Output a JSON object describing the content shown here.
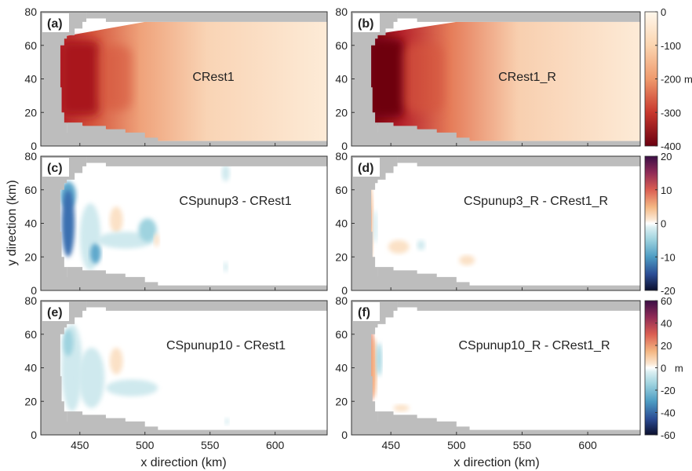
{
  "chart_data": {
    "type": "heatmap",
    "shared": {
      "xlabel": "x direction (km)",
      "ylabel": "y direction (km)",
      "xlim": [
        420,
        640
      ],
      "ylim": [
        0,
        80
      ],
      "xticks": [
        "450",
        "500",
        "550",
        "600"
      ],
      "yticks": [
        "0",
        "20",
        "40",
        "60",
        "80"
      ]
    },
    "panels": [
      {
        "id": "a",
        "label": "(a)",
        "title": "CRest1",
        "field": "depth",
        "core": {
          "x": [
            435,
            465
          ],
          "y": [
            18,
            63
          ],
          "value": -300
        },
        "plume": {
          "x_end": 630,
          "value_end": -20
        }
      },
      {
        "id": "b",
        "label": "(b)",
        "title": "CRest1_R",
        "field": "depth",
        "core": {
          "x": [
            433,
            460
          ],
          "y": [
            17,
            64
          ],
          "value": -400
        },
        "plume": {
          "x_end": 630,
          "value_end": -20
        }
      },
      {
        "id": "c",
        "label": "(c)",
        "title": "CSpunup3  - CRest1",
        "field": "diff",
        "blobs": [
          {
            "x": 441,
            "y": 57,
            "rx": 6,
            "ry": 8,
            "value": -12
          },
          {
            "x": 441,
            "y": 40,
            "rx": 5,
            "ry": 20,
            "value": -14
          },
          {
            "x": 458,
            "y": 32,
            "rx": 8,
            "ry": 20,
            "value": -4
          },
          {
            "x": 462,
            "y": 22,
            "rx": 4,
            "ry": 6,
            "value": -9
          },
          {
            "x": 478,
            "y": 42,
            "rx": 5,
            "ry": 8,
            "value": 4
          },
          {
            "x": 485,
            "y": 30,
            "rx": 22,
            "ry": 5,
            "value": -4
          },
          {
            "x": 502,
            "y": 36,
            "rx": 7,
            "ry": 7,
            "value": -8
          },
          {
            "x": 509,
            "y": 30,
            "rx": 2,
            "ry": 4,
            "value": 4
          },
          {
            "x": 562,
            "y": 70,
            "rx": 3,
            "ry": 5,
            "value": -4
          },
          {
            "x": 562,
            "y": 14,
            "rx": 1.5,
            "ry": 3,
            "value": -3
          }
        ]
      },
      {
        "id": "d",
        "label": "(d)",
        "title": "CSpunup3_R  - CRest1_R",
        "field": "diff",
        "blobs": [
          {
            "x": 433,
            "y": 40,
            "rx": 3,
            "ry": 24,
            "value": 6
          },
          {
            "x": 433,
            "y": 42,
            "rx": 1.5,
            "ry": 8,
            "value": 12
          },
          {
            "x": 438,
            "y": 38,
            "rx": 1.5,
            "ry": 10,
            "value": -3
          },
          {
            "x": 456,
            "y": 26,
            "rx": 8,
            "ry": 4,
            "value": 4
          },
          {
            "x": 473,
            "y": 27,
            "rx": 3,
            "ry": 3,
            "value": -3
          },
          {
            "x": 508,
            "y": 18,
            "rx": 6,
            "ry": 3,
            "value": 3
          }
        ]
      },
      {
        "id": "e",
        "label": "(e)",
        "title": "CSpunup10  - CRest1",
        "field": "diff",
        "blobs": [
          {
            "x": 444,
            "y": 40,
            "rx": 8,
            "ry": 26,
            "value": -10
          },
          {
            "x": 441,
            "y": 55,
            "rx": 4,
            "ry": 8,
            "value": -25
          },
          {
            "x": 459,
            "y": 34,
            "rx": 10,
            "ry": 18,
            "value": -8
          },
          {
            "x": 478,
            "y": 44,
            "rx": 5,
            "ry": 8,
            "value": 12
          },
          {
            "x": 490,
            "y": 28,
            "rx": 20,
            "ry": 5,
            "value": -8
          },
          {
            "x": 563,
            "y": 8,
            "rx": 1.5,
            "ry": 2,
            "value": -8
          }
        ]
      },
      {
        "id": "f",
        "label": "(f)",
        "title": "CSpunup10_R  - CRest1_R",
        "field": "diff",
        "blobs": [
          {
            "x": 432,
            "y": 43,
            "rx": 2,
            "ry": 20,
            "value": -55
          },
          {
            "x": 435,
            "y": 42,
            "rx": 2,
            "ry": 22,
            "value": 35
          },
          {
            "x": 437,
            "y": 40,
            "rx": 2,
            "ry": 18,
            "value": 15
          },
          {
            "x": 441,
            "y": 45,
            "rx": 2,
            "ry": 10,
            "value": -15
          },
          {
            "x": 458,
            "y": 16,
            "rx": 6,
            "ry": 2,
            "value": 10
          }
        ]
      }
    ],
    "colorbars": [
      {
        "row": 1,
        "range": [
          -400,
          0
        ],
        "ticks": [
          "0",
          "-100",
          "-200",
          "-300",
          "-400"
        ],
        "unit": "m"
      },
      {
        "row": 2,
        "range": [
          -20,
          20
        ],
        "ticks": [
          "20",
          "10",
          "0",
          "-10",
          "-20"
        ],
        "unit": ""
      },
      {
        "row": 3,
        "range": [
          -60,
          60
        ],
        "ticks": [
          "60",
          "40",
          "20",
          "0",
          "-20",
          "-40",
          "-60"
        ],
        "unit": "m"
      }
    ]
  }
}
